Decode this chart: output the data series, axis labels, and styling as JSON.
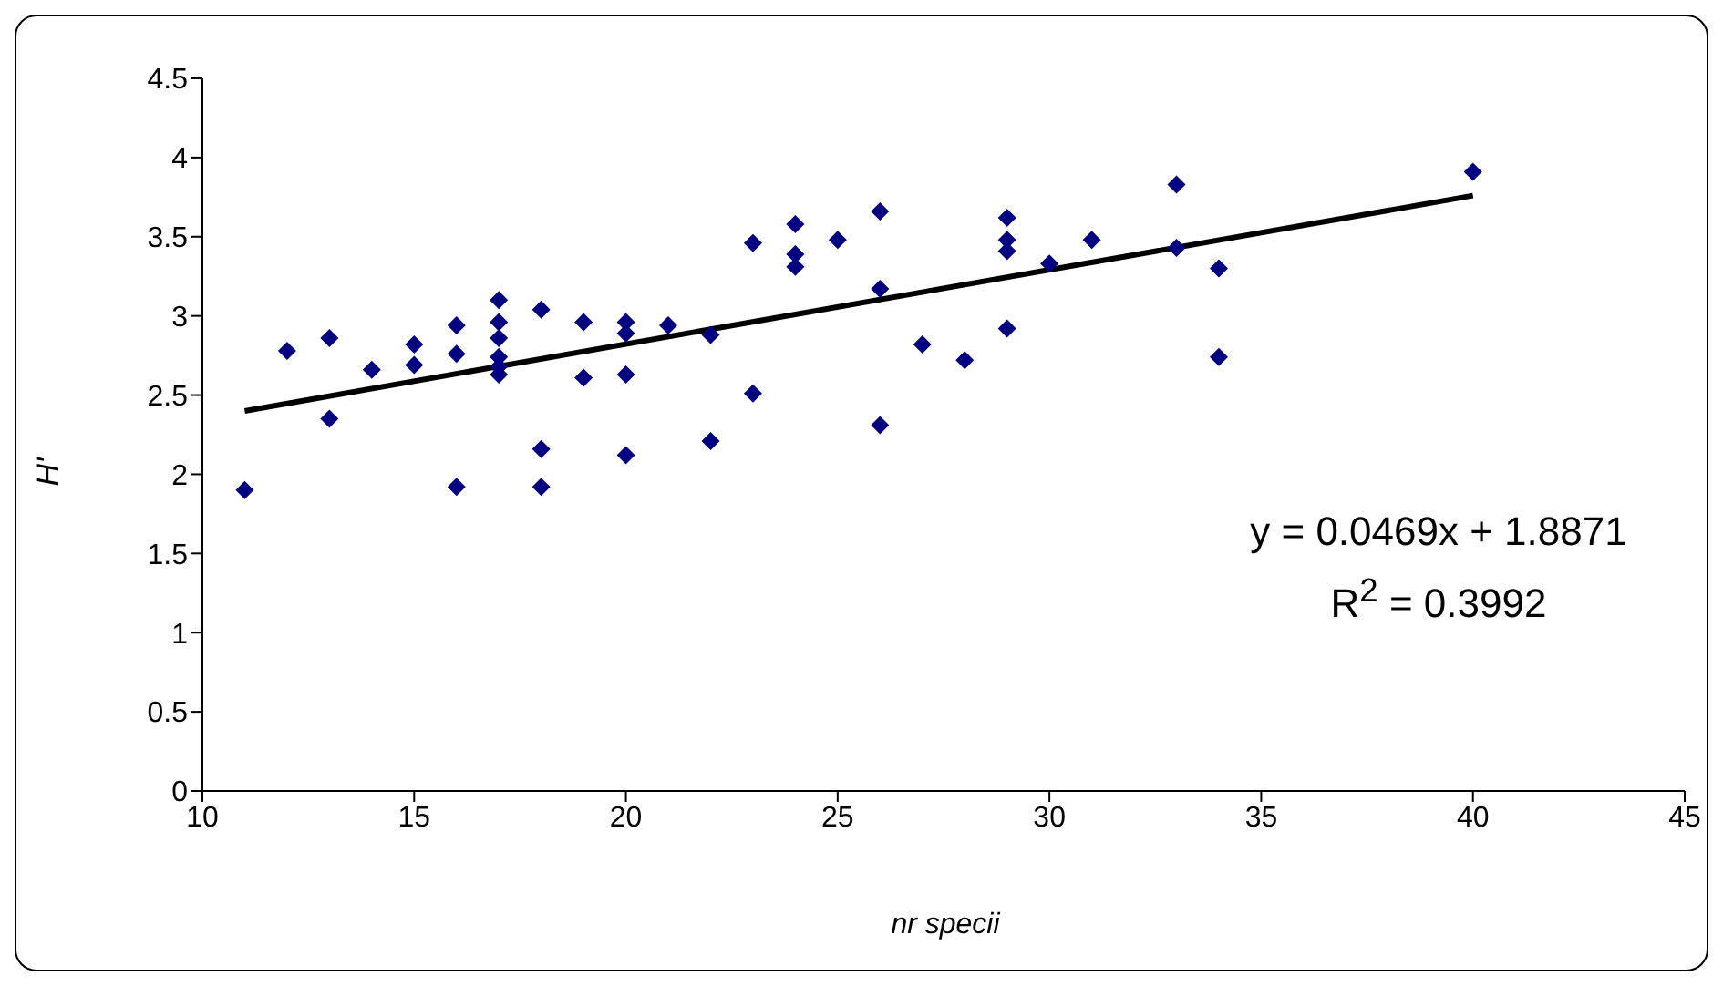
{
  "chart_data": {
    "type": "scatter",
    "xlabel": "nr specii",
    "ylabel": "H'",
    "xlim": [
      10,
      45
    ],
    "xticks": [
      10,
      15,
      20,
      25,
      30,
      35,
      40,
      45
    ],
    "ylim": [
      0,
      4.5
    ],
    "yticks": [
      0,
      0.5,
      1,
      1.5,
      2,
      2.5,
      3,
      3.5,
      4,
      4.5
    ],
    "marker": "diamond",
    "annotations": [
      "y = 0.0469x + 1.8871",
      "R$^{2}$ = 0.3992"
    ],
    "series": [
      {
        "color": "#000080",
        "x": [
          11,
          12,
          13,
          13,
          14,
          15,
          15,
          16,
          16,
          16,
          17,
          17,
          17,
          17,
          17,
          17,
          18,
          18,
          18,
          19,
          19,
          20,
          20,
          20,
          20,
          21,
          22,
          22,
          23,
          23,
          24,
          24,
          24,
          25,
          26,
          26,
          26,
          27,
          28,
          29,
          29,
          29,
          29,
          30,
          31,
          33,
          33,
          34,
          34,
          40
        ],
        "values": [
          1.9,
          2.78,
          2.86,
          2.35,
          2.66,
          2.82,
          2.69,
          2.94,
          2.76,
          1.92,
          3.1,
          2.96,
          2.86,
          2.74,
          2.68,
          2.63,
          3.04,
          2.16,
          1.92,
          2.96,
          2.61,
          2.96,
          2.89,
          2.63,
          2.12,
          2.94,
          2.88,
          2.21,
          3.46,
          2.51,
          3.58,
          3.39,
          3.31,
          3.48,
          3.66,
          3.17,
          2.31,
          2.82,
          2.72,
          3.62,
          3.48,
          3.41,
          2.92,
          3.33,
          3.48,
          3.83,
          3.43,
          3.3,
          2.74,
          3.91
        ]
      },
      {
        "type": "line",
        "color": "#000000",
        "marker": "none",
        "x": [
          11,
          40
        ],
        "values": [
          2.4,
          3.76
        ]
      }
    ]
  }
}
